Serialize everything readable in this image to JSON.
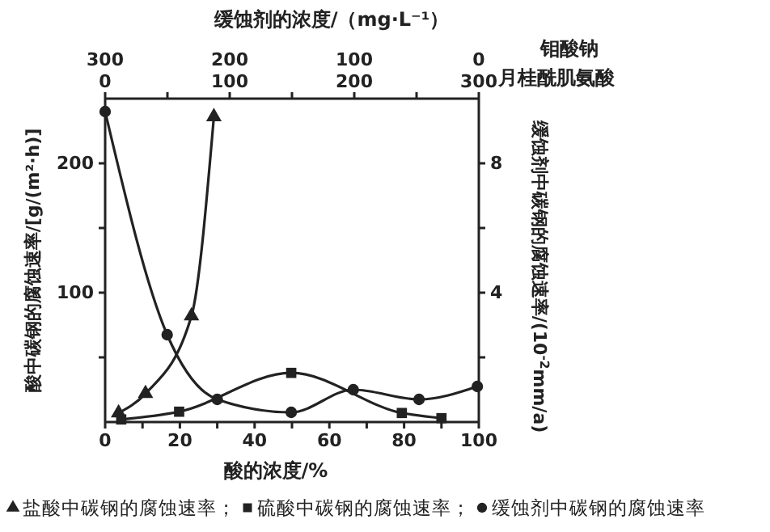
{
  "chart_data": {
    "type": "line",
    "title": "缓蚀剂的浓度/（mg·L⁻¹）",
    "xlabel": "酸的浓度/%",
    "ylabel": "酸中碳钢的腐蚀速率/[g/(m²·h)]",
    "y2label": "缓蚀剂中碳钢的腐蚀速率/(10$^{-2}$mm/a)",
    "x2label": "钼酸钠",
    "annotations": [
      "月桂酰肌氨酸",
      "0",
      "100",
      "200",
      "300"
    ],
    "xlim": [
      0,
      100
    ],
    "xticks": [
      0,
      {
        "value": 10,
        "label": null
      },
      20,
      {
        "value": 30,
        "label": null
      },
      40,
      {
        "value": 50,
        "label": null
      },
      60,
      {
        "value": 70,
        "label": null
      },
      80,
      {
        "value": 90,
        "label": null
      },
      100
    ],
    "ylim": [
      0,
      250
    ],
    "yticks": [
      {
        "value": 50,
        "label": null
      },
      100,
      {
        "value": 150,
        "label": null
      },
      200
    ],
    "y2lim": [
      0,
      10
    ],
    "y2ticks": [
      {
        "value": 2,
        "label": null
      },
      4,
      {
        "value": 6,
        "label": null
      },
      8
    ],
    "x2lim": [
      300,
      0
    ],
    "x2ticks": [
      300,
      {
        "value": 250,
        "label": null
      },
      200,
      {
        "value": 150,
        "label": null
      },
      100,
      {
        "value": 50,
        "label": null
      },
      0
    ],
    "legend": "bottom",
    "line_style": "solid",
    "series": [
      {
        "name": "盐酸中碳钢的腐蚀速率；",
        "color": "#222222",
        "marker": "triangle",
        "x": [
          3.6,
          10.8,
          23.1,
          29.1
        ],
        "values": [
          7,
          22,
          82,
          236
        ]
      },
      {
        "name": "硫酸中碳钢的腐蚀速率；",
        "color": "#222222",
        "marker": "square",
        "x": [
          4.3,
          19.8,
          49.8,
          79.4,
          90
        ],
        "values": [
          2,
          8,
          38,
          7,
          3
        ]
      },
      {
        "name": "缓蚀剂中碳钢的腐蚀速率",
        "color": "#222222",
        "marker": "circle",
        "axis": "y2",
        "x": [
          0,
          16.6,
          30,
          49.8,
          66.4,
          84,
          99.6
        ],
        "values": [
          9.6,
          2.7,
          0.7,
          0.3,
          1.0,
          0.7,
          1.1
        ]
      }
    ]
  }
}
